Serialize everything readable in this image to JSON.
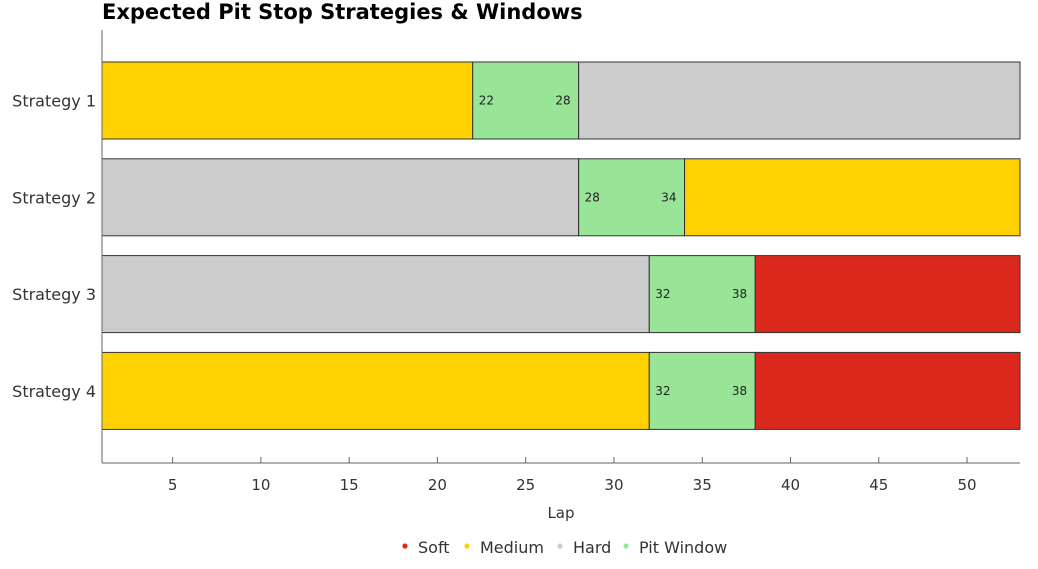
{
  "chart_data": {
    "type": "bar",
    "orientation": "horizontal",
    "stacked": true,
    "title": "Expected Pit Stop Strategies & Windows",
    "xlabel": "Lap",
    "ylabel": "",
    "xlim": [
      1,
      53
    ],
    "xticks": [
      5,
      10,
      15,
      20,
      25,
      30,
      35,
      40,
      45,
      50
    ],
    "grid": false,
    "legend_position": "bottom",
    "colors": {
      "Soft": "#da291c",
      "Medium": "#ffd100",
      "Hard": "#cccccc",
      "Pit Window": "#98e598"
    },
    "legend": [
      "Soft",
      "Medium",
      "Hard",
      "Pit Window"
    ],
    "categories": [
      "Strategy 1",
      "Strategy 2",
      "Strategy 3",
      "Strategy 4"
    ],
    "strategies": [
      {
        "name": "Strategy 1",
        "segments": [
          {
            "compound": "Medium",
            "start": 1,
            "end": 22
          },
          {
            "compound": "Pit Window",
            "start": 22,
            "end": 28,
            "start_label": "22",
            "end_label": "28"
          },
          {
            "compound": "Hard",
            "start": 28,
            "end": 53
          }
        ]
      },
      {
        "name": "Strategy 2",
        "segments": [
          {
            "compound": "Hard",
            "start": 1,
            "end": 28
          },
          {
            "compound": "Pit Window",
            "start": 28,
            "end": 34,
            "start_label": "28",
            "end_label": "34"
          },
          {
            "compound": "Medium",
            "start": 34,
            "end": 53
          }
        ]
      },
      {
        "name": "Strategy 3",
        "segments": [
          {
            "compound": "Hard",
            "start": 1,
            "end": 32
          },
          {
            "compound": "Pit Window",
            "start": 32,
            "end": 38,
            "start_label": "32",
            "end_label": "38"
          },
          {
            "compound": "Soft",
            "start": 38,
            "end": 53
          }
        ]
      },
      {
        "name": "Strategy 4",
        "segments": [
          {
            "compound": "Medium",
            "start": 1,
            "end": 32
          },
          {
            "compound": "Pit Window",
            "start": 32,
            "end": 38,
            "start_label": "32",
            "end_label": "38"
          },
          {
            "compound": "Soft",
            "start": 38,
            "end": 53
          }
        ]
      }
    ]
  }
}
